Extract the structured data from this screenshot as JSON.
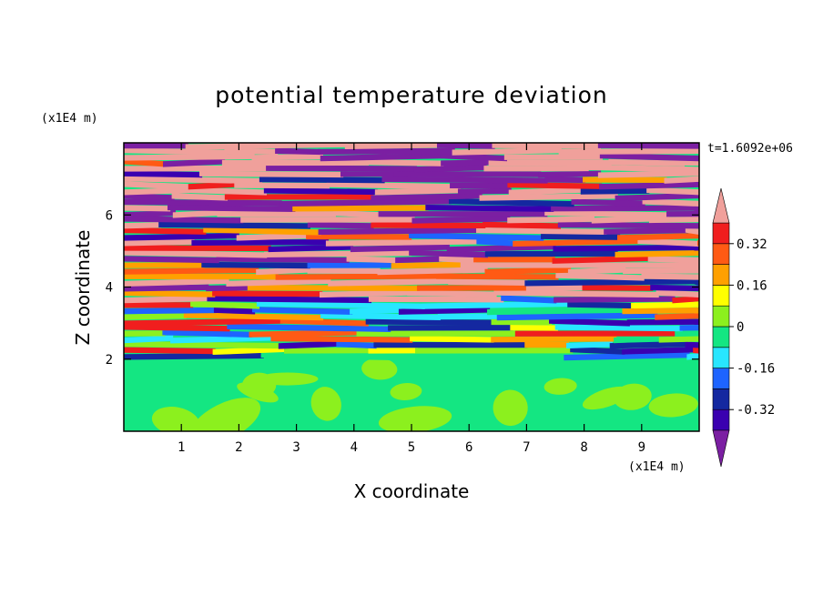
{
  "chart_data": {
    "type": "heatmap",
    "title": "potential temperature deviation",
    "xlabel": "X coordinate",
    "ylabel": "Z coordinate",
    "x_unit": "(x1E4 m)",
    "y_unit": "(x1E4 m)",
    "time_label": "t=1.6092e+06",
    "xlim": [
      0,
      10
    ],
    "ylim": [
      0,
      8
    ],
    "xticks": [
      1,
      2,
      3,
      4,
      5,
      6,
      7,
      8,
      9
    ],
    "yticks": [
      2,
      4,
      6
    ],
    "colorbar": {
      "levels": [
        -0.4,
        -0.32,
        -0.24,
        -0.16,
        -0.08,
        0,
        0.08,
        0.16,
        0.24,
        0.32,
        0.4
      ],
      "labels": [
        "0.32",
        "0.16",
        "0",
        "-0.16",
        "-0.32"
      ],
      "label_values": [
        0.32,
        0.16,
        0,
        -0.16,
        -0.32
      ],
      "colors": [
        "#7b1fa2",
        "#3a00b0",
        "#1428a0",
        "#1e64ff",
        "#28e6ff",
        "#14e682",
        "#8cf01e",
        "#ffff00",
        "#ffa000",
        "#ff5a14",
        "#f01e1e",
        "#f0a09b"
      ],
      "extend": "both"
    }
  }
}
